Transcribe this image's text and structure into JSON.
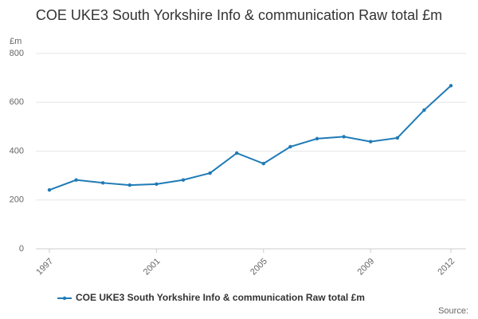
{
  "chart_data": {
    "type": "line",
    "title": "COE UKE3 South Yorkshire Info & communication Raw total £m",
    "y_label": "£m",
    "source": "Source:",
    "x": [
      1997,
      1998,
      1999,
      2000,
      2001,
      2002,
      2003,
      2004,
      2005,
      2006,
      2007,
      2008,
      2009,
      2010,
      2011,
      2012
    ],
    "series": [
      {
        "name": "COE UKE3 South Yorkshire Info & communication Raw total £m",
        "color": "#1f7bb6",
        "values": [
          241,
          282,
          270,
          261,
          265,
          282,
          310,
          392,
          349,
          418,
          451,
          459,
          439,
          454,
          568,
          668
        ]
      }
    ],
    "xlim": [
      1997,
      2012
    ],
    "xticks": [
      1997,
      2001,
      2005,
      2009,
      2012
    ],
    "ylim": [
      0,
      800
    ],
    "yticks": [
      0,
      200,
      400,
      600,
      800
    ],
    "grid": true,
    "legend": "bottom"
  }
}
